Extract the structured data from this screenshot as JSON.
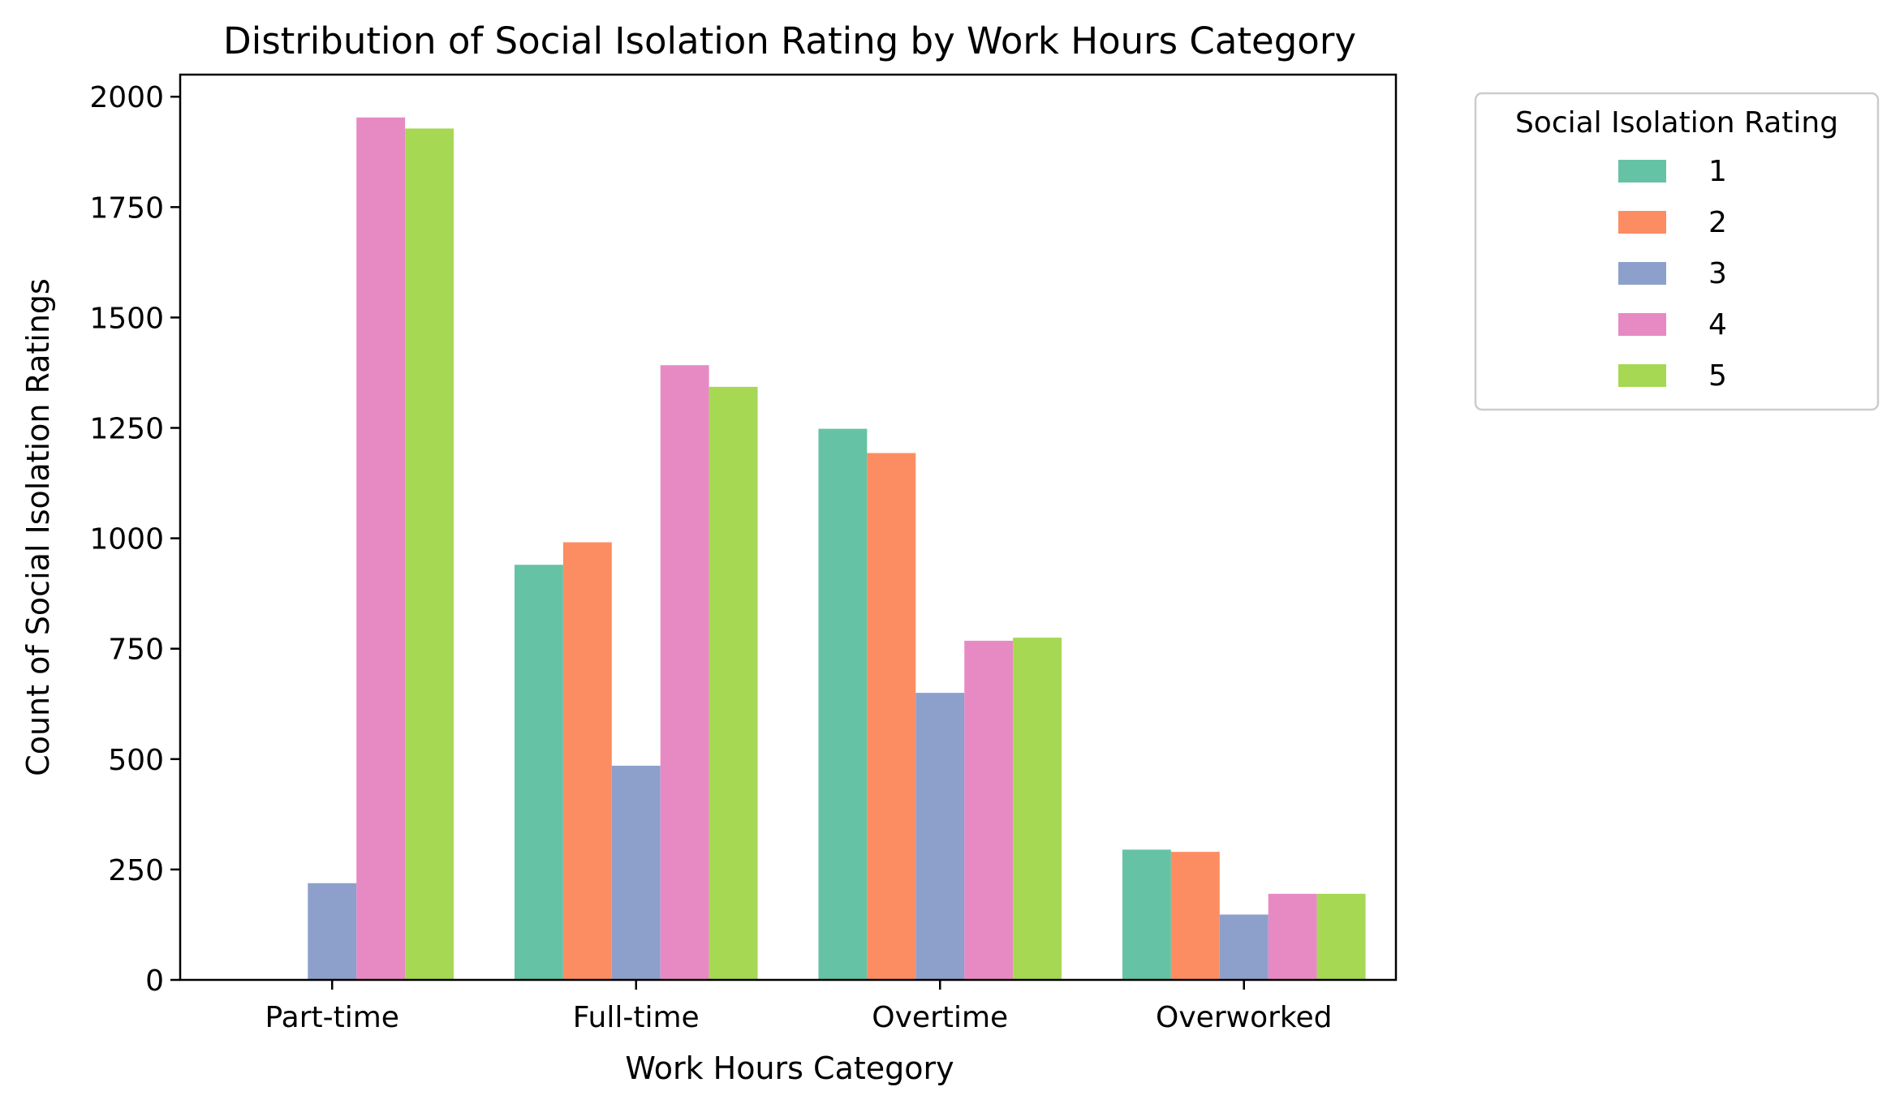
{
  "chart_data": {
    "type": "bar",
    "title": "Distribution of Social Isolation Rating by Work Hours Category",
    "xlabel": "Work Hours Category",
    "ylabel": "Count of Social Isolation Ratings",
    "ylim": [
      0,
      2050
    ],
    "yticks": [
      0,
      250,
      500,
      750,
      1000,
      1250,
      1500,
      1750,
      2000
    ],
    "categories": [
      "Part-time",
      "Full-time",
      "Overtime",
      "Overworked"
    ],
    "legend": {
      "title": "Social Isolation Rating",
      "placement": "outside-right-top"
    },
    "grid": false,
    "series": [
      {
        "name": "1",
        "color": "#66c2a5",
        "values": [
          0,
          940,
          1248,
          295
        ]
      },
      {
        "name": "2",
        "color": "#fc8d62",
        "values": [
          0,
          991,
          1193,
          290
        ]
      },
      {
        "name": "3",
        "color": "#8da0cb",
        "values": [
          219,
          485,
          650,
          148
        ]
      },
      {
        "name": "4",
        "color": "#e78ac3",
        "values": [
          1953,
          1392,
          768,
          195
        ]
      },
      {
        "name": "5",
        "color": "#a6d854",
        "values": [
          1928,
          1343,
          775,
          195
        ]
      }
    ]
  }
}
